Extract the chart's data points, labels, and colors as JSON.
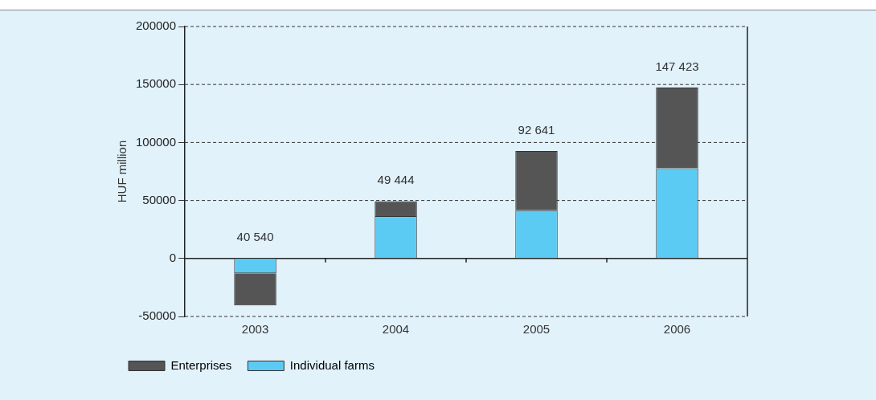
{
  "chart_data": {
    "type": "bar",
    "ylabel": "HUF million",
    "categories": [
      "2003",
      "2004",
      "2005",
      "2006"
    ],
    "stacked": true,
    "series": [
      {
        "name": "Individual farms",
        "color": "#5ccbf3",
        "values": [
          -12800,
          36500,
          41500,
          77700
        ]
      },
      {
        "name": "Enterprises",
        "color": "#555555",
        "values": [
          -27700,
          12900,
          51100,
          69700
        ]
      }
    ],
    "annotations": [
      {
        "text": "40 540",
        "x": "2003",
        "y": 0
      },
      {
        "text": "49 444",
        "x": "2004",
        "y": 49444
      },
      {
        "text": "92 641",
        "x": "2005",
        "y": 92641
      },
      {
        "text": "147 423",
        "x": "2006",
        "y": 147423
      }
    ],
    "ylim": [
      -50000,
      200000
    ],
    "yticks": [
      -50000,
      0,
      50000,
      100000,
      150000,
      200000
    ],
    "grid": "y",
    "legend": "bottom left"
  }
}
